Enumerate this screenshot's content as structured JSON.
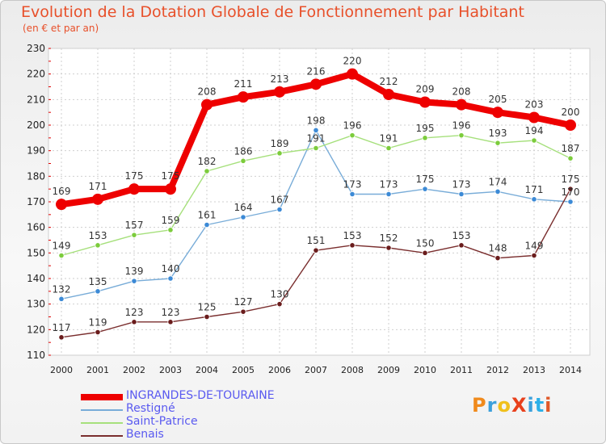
{
  "header": {
    "title": "Evolution de la Dotation Globale de Fonctionnement par Habitant",
    "subtitle": "(en € et par an)"
  },
  "logo": {
    "text": "ProXiti",
    "letters": [
      "P",
      "r",
      "o",
      "X",
      "i",
      "t",
      "i"
    ],
    "colors": [
      "#f08a1c",
      "#3ca0dc",
      "#f0c01c",
      "#e8401c",
      "#3ca0dc",
      "#2cb0e8",
      "#e05828"
    ]
  },
  "chart_data": {
    "type": "line",
    "title": "Evolution de la Dotation Globale de Fonctionnement par Habitant",
    "subtitle": "(en € et par an)",
    "xlabel": "",
    "ylabel": "",
    "x": [
      2000,
      2001,
      2002,
      2003,
      2004,
      2005,
      2006,
      2007,
      2008,
      2009,
      2010,
      2011,
      2012,
      2013,
      2014
    ],
    "ylim": [
      110,
      230
    ],
    "yticks": [
      110,
      120,
      130,
      140,
      150,
      160,
      170,
      180,
      190,
      200,
      210,
      220,
      230
    ],
    "grid": true,
    "legend_position": "bottom-left",
    "series": [
      {
        "name": "INGRANDES-DE-TOURAINE",
        "color": "#ee0000",
        "marker_color": "#ee0000",
        "emphasis": true,
        "values": [
          169,
          171,
          175,
          175,
          208,
          211,
          213,
          216,
          220,
          212,
          209,
          208,
          205,
          203,
          200
        ],
        "labels": [
          "169",
          "171",
          "175",
          "175",
          "208",
          "211",
          "213",
          "216",
          "220",
          "212",
          "209",
          "208",
          "205",
          "203",
          "200"
        ]
      },
      {
        "name": "Restigné",
        "color": "#78acd8",
        "marker_color": "#3c8ad6",
        "emphasis": false,
        "values": [
          132,
          135,
          139,
          140,
          161,
          164,
          167,
          198,
          173,
          173,
          175,
          173,
          174,
          171,
          170
        ],
        "labels": [
          "132",
          "135",
          "139",
          "140",
          "161",
          "164",
          "167",
          "198",
          "173",
          "173",
          "175",
          "173",
          "174",
          "171",
          "170"
        ]
      },
      {
        "name": "Saint-Patrice",
        "color": "#a6e07c",
        "marker_color": "#7ccc3c",
        "emphasis": false,
        "values": [
          149,
          153,
          157,
          159,
          182,
          186,
          189,
          191,
          196,
          191,
          195,
          196,
          193,
          194,
          187
        ],
        "labels": [
          "149",
          "153",
          "157",
          "159",
          "182",
          "186",
          "189",
          "191",
          "196",
          "191",
          "195",
          "196",
          "193",
          "194",
          "187"
        ]
      },
      {
        "name": "Benais",
        "color": "#7a2e2e",
        "marker_color": "#6a1c1c",
        "emphasis": false,
        "values": [
          117,
          119,
          123,
          123,
          125,
          127,
          130,
          151,
          153,
          152,
          150,
          153,
          148,
          149,
          175
        ],
        "labels": [
          "117",
          "119",
          "123",
          "123",
          "125",
          "127",
          "130",
          "151",
          "153",
          "152",
          "150",
          "153",
          "148",
          "149",
          "175"
        ]
      }
    ]
  }
}
